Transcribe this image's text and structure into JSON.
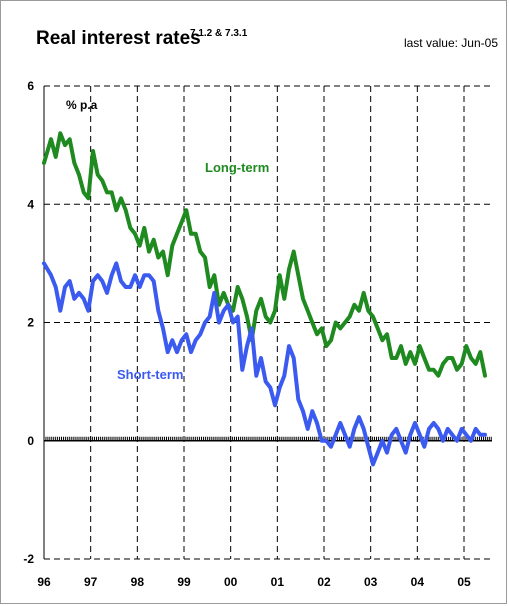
{
  "title": "Real interest rates",
  "title_superscript": "7.1.2 & 7.3.1",
  "last_value_note": "last value: Jun-05",
  "colors": {
    "long": "#1f8a1f",
    "short": "#3b5bf0",
    "grid": "#000000",
    "axis": "#000000"
  },
  "chart_data": {
    "type": "line",
    "title": "Real interest rates",
    "unit_label": "% p.a",
    "x_tick_labels": [
      "96",
      "97",
      "98",
      "99",
      "00",
      "01",
      "02",
      "03",
      "04",
      "05"
    ],
    "x_range": [
      1996.0,
      2005.6
    ],
    "ylim": [
      -2,
      6
    ],
    "y_ticks": [
      "-2",
      "0",
      "2",
      "4",
      "6"
    ],
    "grid": true,
    "series": [
      {
        "name": "Long-term",
        "x": [
          1996.0,
          1996.15,
          1996.25,
          1996.35,
          1996.45,
          1996.55,
          1996.65,
          1996.75,
          1996.85,
          1996.95,
          1997.05,
          1997.15,
          1997.25,
          1997.35,
          1997.45,
          1997.55,
          1997.65,
          1997.75,
          1997.85,
          1997.95,
          1998.05,
          1998.15,
          1998.25,
          1998.35,
          1998.45,
          1998.55,
          1998.65,
          1998.75,
          1998.85,
          1998.95,
          1999.05,
          1999.15,
          1999.25,
          1999.35,
          1999.45,
          1999.55,
          1999.65,
          1999.75,
          1999.85,
          1999.95,
          2000.05,
          2000.15,
          2000.25,
          2000.35,
          2000.45,
          2000.55,
          2000.65,
          2000.75,
          2000.85,
          2000.95,
          2001.05,
          2001.15,
          2001.25,
          2001.35,
          2001.45,
          2001.55,
          2001.65,
          2001.75,
          2001.85,
          2001.95,
          2002.05,
          2002.15,
          2002.25,
          2002.35,
          2002.45,
          2002.55,
          2002.65,
          2002.75,
          2002.85,
          2002.95,
          2003.05,
          2003.15,
          2003.25,
          2003.35,
          2003.45,
          2003.55,
          2003.65,
          2003.75,
          2003.85,
          2003.95,
          2004.05,
          2004.15,
          2004.25,
          2004.35,
          2004.45,
          2004.55,
          2004.65,
          2004.75,
          2004.85,
          2004.95,
          2005.05,
          2005.15,
          2005.25,
          2005.35,
          2005.45
        ],
        "values": [
          4.7,
          5.1,
          4.8,
          5.2,
          5.0,
          5.1,
          4.7,
          4.5,
          4.2,
          4.1,
          4.9,
          4.5,
          4.4,
          4.2,
          4.2,
          3.9,
          4.1,
          3.9,
          3.6,
          3.5,
          3.3,
          3.6,
          3.2,
          3.4,
          3.1,
          3.2,
          2.8,
          3.3,
          3.5,
          3.7,
          3.9,
          3.5,
          3.5,
          3.2,
          3.1,
          2.6,
          2.8,
          2.3,
          2.5,
          2.3,
          2.2,
          2.6,
          2.4,
          2.1,
          1.7,
          2.2,
          2.4,
          2.1,
          2.0,
          2.2,
          2.8,
          2.4,
          2.9,
          3.2,
          2.8,
          2.4,
          2.2,
          2.0,
          1.8,
          1.9,
          1.6,
          1.7,
          2.0,
          1.9,
          2.0,
          2.1,
          2.3,
          2.2,
          2.5,
          2.2,
          2.1,
          1.9,
          1.7,
          1.8,
          1.4,
          1.4,
          1.6,
          1.3,
          1.5,
          1.3,
          1.6,
          1.4,
          1.2,
          1.2,
          1.1,
          1.3,
          1.4,
          1.4,
          1.2,
          1.3,
          1.6,
          1.4,
          1.3,
          1.5,
          1.1
        ]
      },
      {
        "name": "Short-term",
        "x": [
          1996.0,
          1996.15,
          1996.25,
          1996.35,
          1996.45,
          1996.55,
          1996.65,
          1996.75,
          1996.85,
          1996.95,
          1997.05,
          1997.15,
          1997.25,
          1997.35,
          1997.45,
          1997.55,
          1997.65,
          1997.75,
          1997.85,
          1997.95,
          1998.05,
          1998.15,
          1998.25,
          1998.35,
          1998.45,
          1998.55,
          1998.65,
          1998.75,
          1998.85,
          1998.95,
          1999.05,
          1999.15,
          1999.25,
          1999.35,
          1999.45,
          1999.55,
          1999.65,
          1999.75,
          1999.85,
          1999.95,
          2000.05,
          2000.15,
          2000.25,
          2000.35,
          2000.45,
          2000.55,
          2000.65,
          2000.75,
          2000.85,
          2000.95,
          2001.05,
          2001.15,
          2001.25,
          2001.35,
          2001.45,
          2001.55,
          2001.65,
          2001.75,
          2001.85,
          2001.95,
          2002.05,
          2002.15,
          2002.25,
          2002.35,
          2002.45,
          2002.55,
          2002.65,
          2002.75,
          2002.85,
          2002.95,
          2003.05,
          2003.15,
          2003.25,
          2003.35,
          2003.45,
          2003.55,
          2003.65,
          2003.75,
          2003.85,
          2003.95,
          2004.05,
          2004.15,
          2004.25,
          2004.35,
          2004.45,
          2004.55,
          2004.65,
          2004.75,
          2004.85,
          2004.95,
          2005.05,
          2005.15,
          2005.25,
          2005.35,
          2005.45
        ],
        "values": [
          3.0,
          2.8,
          2.6,
          2.2,
          2.6,
          2.7,
          2.4,
          2.5,
          2.4,
          2.2,
          2.7,
          2.8,
          2.7,
          2.5,
          2.8,
          3.0,
          2.7,
          2.6,
          2.6,
          2.8,
          2.6,
          2.8,
          2.8,
          2.7,
          2.2,
          1.9,
          1.5,
          1.7,
          1.5,
          1.7,
          1.8,
          1.5,
          1.7,
          1.8,
          2.0,
          2.1,
          2.5,
          2.0,
          2.2,
          2.3,
          2.0,
          2.1,
          1.2,
          1.6,
          1.9,
          1.1,
          1.4,
          1.0,
          0.9,
          0.6,
          0.9,
          1.1,
          1.6,
          1.4,
          0.7,
          0.5,
          0.2,
          0.5,
          0.3,
          0.0,
          0.0,
          -0.1,
          0.1,
          0.3,
          0.1,
          -0.1,
          0.2,
          0.4,
          0.2,
          -0.1,
          -0.4,
          -0.2,
          0.0,
          -0.2,
          0.1,
          0.2,
          0.0,
          -0.2,
          0.1,
          0.3,
          0.1,
          -0.1,
          0.2,
          0.3,
          0.2,
          0.0,
          0.2,
          0.1,
          0.0,
          0.2,
          0.1,
          0.0,
          0.2,
          0.1,
          0.1
        ]
      }
    ],
    "annotations": [
      {
        "text": "Long-term",
        "series": "Long-term"
      },
      {
        "text": "Short-term",
        "series": "Short-term"
      }
    ]
  }
}
